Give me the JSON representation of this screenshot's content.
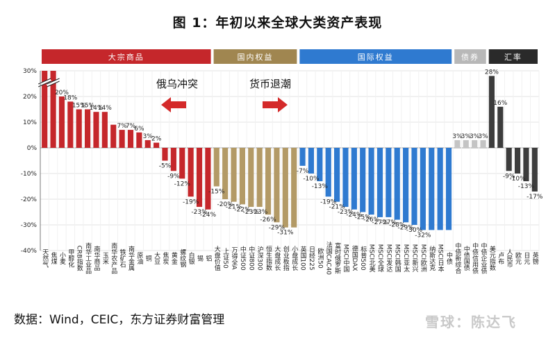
{
  "title": "图 1：年初以来全球大类资产表现",
  "source": "数据：Wind，CEIC，东方证券财富管理",
  "watermark": "雪球：陈达飞",
  "annotations": [
    {
      "text": "俄乌冲突",
      "arrow": "left"
    },
    {
      "text": "货币退潮",
      "arrow": "right"
    }
  ],
  "chart_data": {
    "type": "bar",
    "ylim": [
      -40,
      30
    ],
    "yticks": [
      -40,
      -30,
      -20,
      -10,
      0,
      10,
      20,
      30
    ],
    "ytick_labels": [
      "-40%",
      "-30%",
      "-20%",
      "-10%",
      "0%",
      "10%",
      "20%",
      "30%"
    ],
    "grid": true,
    "groups": [
      {
        "name": "大宗商品",
        "color": "#c5272b",
        "header_color": "#c5272b",
        "start": 0,
        "end": 19
      },
      {
        "name": "国内权益",
        "color": "#b39a66",
        "header_color": "#a08650",
        "start": 20,
        "end": 29
      },
      {
        "name": "国际权益",
        "color": "#2f7ad0",
        "header_color": "#2f7ad0",
        "start": 30,
        "end": 47
      },
      {
        "name": "债券",
        "color": "#c4c4c4",
        "header_color": "#b8b8b8",
        "start": 48,
        "end": 51
      },
      {
        "name": "汇率",
        "color": "#3c3c3c",
        "header_color": "#2a2a2a",
        "start": 52,
        "end": 57
      }
    ],
    "categories": [
      "天然气",
      "焦煤",
      "小麦",
      "甲醇化",
      "CRB指数",
      "南华工业品",
      "南华商品",
      "玉米",
      "南华农产品",
      "铁矿石",
      "南华金属",
      "原油",
      "铜",
      "大豆",
      "焦炭",
      "黄金",
      "螺纹钢",
      "白银",
      "锡",
      "铝",
      "大盘价值",
      "上证50",
      "万得全A",
      "中证500",
      "中证800",
      "沪深300",
      "恒生指数",
      "大盘成长",
      "创业板指",
      "小盘成长",
      "英国100",
      "日经225",
      "欧洲50",
      "法国CAC40",
      "富时俄罗斯",
      "MSCI中国",
      "德国DAX",
      "标普500",
      "MSCI北美",
      "MSCI全球",
      "MSCI发达",
      "MSCI韩国",
      "MSCI亚太",
      "MSCI新兴",
      "MSCI欧洲",
      "纳斯达克",
      "MSCI日本",
      "中债",
      "中债新综合",
      "中债国债",
      "中债信用债",
      "中债企业债",
      "美元指数",
      "卢布",
      "人民币",
      "欧元",
      "日元",
      "英镑"
    ],
    "values": [
      30,
      30,
      20,
      18,
      15,
      15,
      14,
      14,
      9,
      7,
      7,
      6,
      3,
      2,
      -5,
      -9,
      -12,
      -19,
      -23,
      -24,
      -15,
      -20,
      -21,
      -22,
      -23,
      -23,
      -26,
      -29,
      -31,
      -31,
      -7,
      -10,
      -13,
      -19,
      -21,
      -23,
      -24,
      -25,
      -26,
      -27,
      -27,
      -28,
      -29,
      -30,
      -32,
      -32,
      -32,
      -32,
      3,
      3,
      3,
      3,
      28,
      16,
      -9,
      -10,
      -13,
      -17
    ],
    "data_labels": [
      "",
      "",
      "20%",
      "18%",
      "15%",
      "15%",
      "14%",
      "14%",
      "",
      "7%",
      "7%",
      "6%",
      "3%",
      "2%",
      "-5%",
      "-9%",
      "-12%",
      "-19%",
      "-23%",
      "-24%",
      "-15%",
      "-20%",
      "-21%",
      "-22%",
      "-23%",
      "-23%",
      "-26%",
      "-29%",
      "-31%",
      "",
      "-7%",
      "-10%",
      "-13%",
      "-19%",
      "-21%",
      "-23%",
      "-24%",
      "-25%",
      "-26%",
      "-27%",
      "-27%",
      "-28%",
      "-29%",
      "-30%",
      "-32%",
      "",
      "",
      "",
      "3%",
      "3%",
      "3%",
      "3%",
      "28%",
      "16%",
      "-9%",
      "-10%",
      "-13%",
      "-17%"
    ],
    "broken_axis_indices": [
      0,
      1
    ]
  }
}
